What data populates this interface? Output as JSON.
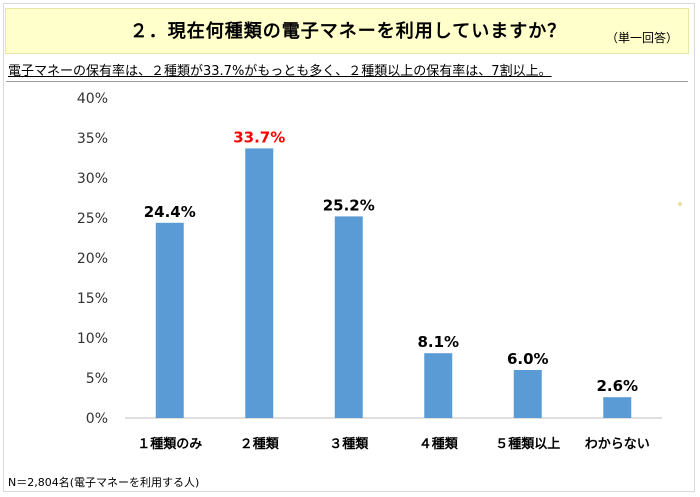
{
  "header": {
    "title": "２．現在何種類の電子マネーを利用していますか？",
    "answer_note": "（単一回答）"
  },
  "summary": "電子マネーの保有率は、２種類が33.7%がもっとも多く、２種類以上の保有率は、7割以上。",
  "footnote": "N＝2,804名(電子マネーを利用する人)",
  "colors": {
    "bar": "#5b9bd5",
    "highlight_label": "#ff0000",
    "title_band": "#ffffcc"
  },
  "chart_data": {
    "type": "bar",
    "categories": [
      "１種類のみ",
      "２種類",
      "３種類",
      "４種類",
      "５種類以上",
      "わからない"
    ],
    "values": [
      24.4,
      33.7,
      25.2,
      8.1,
      6.0,
      2.6
    ],
    "value_labels": [
      "24.4%",
      "33.7%",
      "25.2%",
      "8.1%",
      "6.0%",
      "2.6%"
    ],
    "highlight_index": 1,
    "ylim": [
      0,
      40
    ],
    "yticks": [
      0,
      5,
      10,
      15,
      20,
      25,
      30,
      35,
      40
    ],
    "ytick_labels": [
      "0%",
      "5%",
      "10%",
      "15%",
      "20%",
      "25%",
      "30%",
      "35%",
      "40%"
    ],
    "grid": false,
    "legend": "none"
  }
}
